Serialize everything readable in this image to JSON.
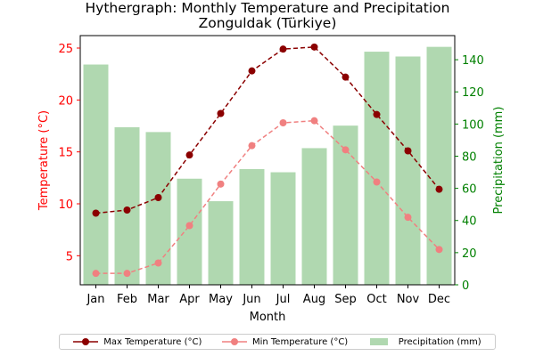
{
  "chart_data": {
    "type": "bar+line",
    "title": "Hythergraph: Monthly Temperature and Precipitation",
    "subtitle": "Zonguldak (Türkiye)",
    "xlabel": "Month",
    "ylabel_left": "Temperature (°C)",
    "ylabel_right": "Precipitation (mm)",
    "categories": [
      "Jan",
      "Feb",
      "Mar",
      "Apr",
      "May",
      "Jun",
      "Jul",
      "Aug",
      "Sep",
      "Oct",
      "Nov",
      "Dec"
    ],
    "ylim_left": [
      2.2,
      26.2
    ],
    "yticks_left": [
      5,
      10,
      15,
      20,
      25
    ],
    "ylim_right": [
      0,
      155
    ],
    "yticks_right": [
      0,
      20,
      40,
      60,
      80,
      100,
      120,
      140
    ],
    "series": [
      {
        "name": "Max Temperature (°C)",
        "type": "line",
        "axis": "left",
        "color": "#8b0000",
        "values": [
          9.1,
          9.4,
          10.6,
          14.7,
          18.7,
          22.8,
          24.9,
          25.1,
          22.2,
          18.6,
          15.1,
          11.4
        ]
      },
      {
        "name": "Min Temperature (°C)",
        "type": "line",
        "axis": "left",
        "color": "#f08080",
        "values": [
          3.3,
          3.3,
          4.3,
          7.9,
          11.9,
          15.6,
          17.8,
          18.0,
          15.2,
          12.1,
          8.7,
          5.6
        ]
      },
      {
        "name": "Precipitation (mm)",
        "type": "bar",
        "axis": "right",
        "color": "#b0d8b0",
        "values": [
          137,
          98,
          95,
          66,
          52,
          72,
          70,
          85,
          99,
          145,
          142,
          148
        ]
      }
    ],
    "colors": {
      "left_axis": "#ff0000",
      "right_axis": "#008000"
    },
    "legend": "bottom-center"
  }
}
